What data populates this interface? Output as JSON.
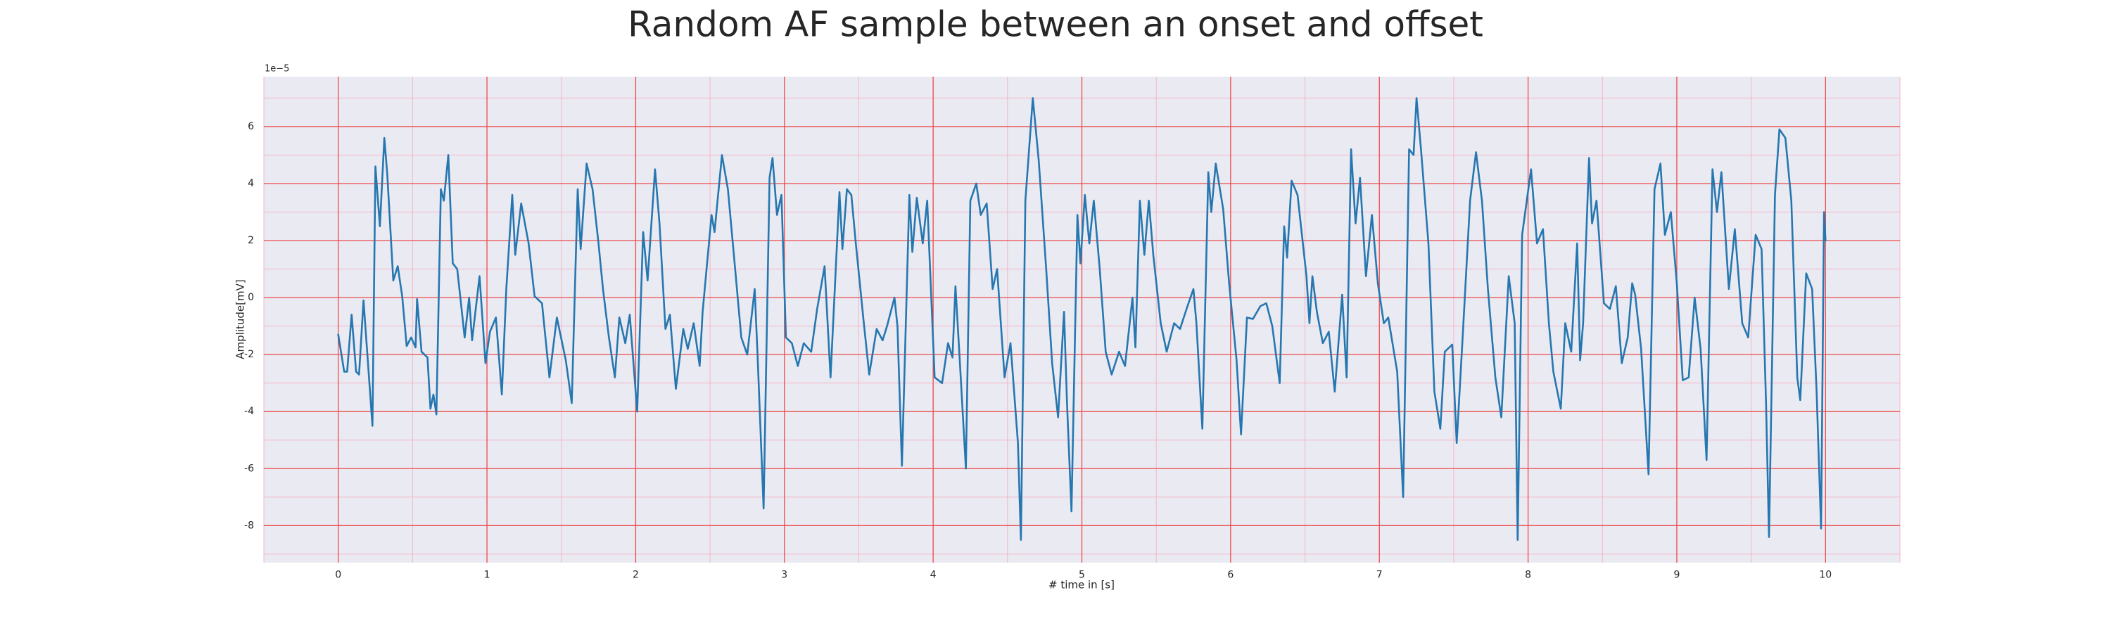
{
  "chart_data": {
    "type": "line",
    "title": "Random AF sample between an onset and offset",
    "xlabel": "# time in [s]",
    "ylabel": "Amplitude[mV]",
    "y_offset_label": "1e−5",
    "color": "#2677b0",
    "grid": true,
    "xlim": [
      -0.5,
      10.5
    ],
    "ylim": [
      -9.3,
      7.75
    ],
    "xticks": [
      0,
      1,
      2,
      3,
      4,
      5,
      6,
      7,
      8,
      9,
      10
    ],
    "yticks": [
      -8,
      -6,
      -4,
      -2,
      0,
      2,
      4,
      6
    ],
    "xminorticks": [
      -0.5,
      0.5,
      1.5,
      2.5,
      3.5,
      4.5,
      5.5,
      6.5,
      7.5,
      8.5,
      9.5,
      10.5
    ],
    "yminorticks": [
      -9,
      -7,
      -5,
      -3,
      -1,
      1,
      3,
      5,
      7
    ],
    "x": [
      0,
      0.04,
      0.06,
      0.09,
      0.12,
      0.14,
      0.17,
      0.2,
      0.23,
      0.25,
      0.28,
      0.31,
      0.33,
      0.37,
      0.4,
      0.43,
      0.46,
      0.49,
      0.52,
      0.53,
      0.56,
      0.6,
      0.62,
      0.64,
      0.66,
      0.69,
      0.71,
      0.74,
      0.77,
      0.8,
      0.82,
      0.85,
      0.88,
      0.9,
      0.95,
      0.99,
      1.02,
      1.06,
      1.1,
      1.13,
      1.17,
      1.19,
      1.23,
      1.28,
      1.32,
      1.37,
      1.42,
      1.47,
      1.53,
      1.57,
      1.61,
      1.63,
      1.67,
      1.71,
      1.75,
      1.78,
      1.82,
      1.86,
      1.89,
      1.93,
      1.96,
      2.01,
      2.05,
      2.08,
      2.13,
      2.16,
      2.2,
      2.23,
      2.27,
      2.32,
      2.35,
      2.39,
      2.43,
      2.45,
      2.51,
      2.53,
      2.58,
      2.62,
      2.66,
      2.71,
      2.75,
      2.8,
      2.82,
      2.86,
      2.9,
      2.92,
      2.95,
      2.98,
      3.01,
      3.05,
      3.09,
      3.13,
      3.18,
      3.22,
      3.27,
      3.31,
      3.37,
      3.39,
      3.42,
      3.45,
      3.48,
      3.53,
      3.57,
      3.62,
      3.66,
      3.69,
      3.74,
      3.76,
      3.79,
      3.84,
      3.86,
      3.89,
      3.93,
      3.96,
      4.01,
      4.06,
      4.1,
      4.13,
      4.15,
      4.18,
      4.22,
      4.25,
      4.29,
      4.32,
      4.36,
      4.4,
      4.43,
      4.48,
      4.52,
      4.57,
      4.59,
      4.62,
      4.67,
      4.71,
      4.76,
      4.8,
      4.84,
      4.88,
      4.9,
      4.93,
      4.97,
      4.99,
      5.02,
      5.05,
      5.08,
      5.12,
      5.16,
      5.2,
      5.25,
      5.29,
      5.34,
      5.36,
      5.39,
      5.42,
      5.45,
      5.48,
      5.53,
      5.57,
      5.62,
      5.66,
      5.71,
      5.75,
      5.77,
      5.81,
      5.85,
      5.87,
      5.9,
      5.95,
      5.99,
      6.04,
      6.07,
      6.11,
      6.15,
      6.2,
      6.24,
      6.28,
      6.33,
      6.36,
      6.38,
      6.41,
      6.45,
      6.51,
      6.53,
      6.55,
      6.58,
      6.62,
      6.66,
      6.7,
      6.75,
      6.78,
      6.81,
      6.84,
      6.87,
      6.91,
      6.95,
      6.99,
      7.03,
      7.06,
      7.12,
      7.16,
      7.2,
      7.23,
      7.25,
      7.28,
      7.33,
      7.37,
      7.41,
      7.44,
      7.49,
      7.52,
      7.56,
      7.61,
      7.65,
      7.69,
      7.73,
      7.78,
      7.82,
      7.87,
      7.91,
      7.93,
      7.96,
      8.02,
      8.06,
      8.1,
      8.14,
      8.17,
      8.22,
      8.25,
      8.29,
      8.33,
      8.35,
      8.37,
      8.41,
      8.43,
      8.46,
      8.51,
      8.55,
      8.59,
      8.63,
      8.67,
      8.7,
      8.72,
      8.76,
      8.81,
      8.85,
      8.89,
      8.92,
      8.96,
      9.0,
      9.04,
      9.08,
      9.12,
      9.16,
      9.2,
      9.24,
      9.27,
      9.3,
      9.35,
      9.39,
      9.44,
      9.48,
      9.53,
      9.57,
      9.6,
      9.62,
      9.66,
      9.69,
      9.73,
      9.77,
      9.81,
      9.83,
      9.87,
      9.91,
      9.94,
      9.97,
      9.99,
      10.0
    ],
    "values": [
      -1.3,
      -2.6,
      -2.6,
      -0.6,
      -2.6,
      -2.7,
      -0.1,
      -2.3,
      -4.5,
      4.6,
      2.5,
      5.6,
      4.3,
      0.6,
      1.1,
      0.05,
      -1.7,
      -1.4,
      -1.75,
      -0.05,
      -1.9,
      -2.1,
      -3.9,
      -3.4,
      -4.1,
      3.8,
      3.4,
      5.0,
      1.2,
      1.0,
      0.05,
      -1.4,
      0,
      -1.5,
      0.75,
      -2.3,
      -1.2,
      -0.7,
      -3.4,
      0.3,
      3.6,
      1.5,
      3.3,
      1.9,
      0.05,
      -0.2,
      -2.8,
      -0.7,
      -2.2,
      -3.7,
      3.8,
      1.7,
      4.7,
      3.8,
      1.9,
      0.3,
      -1.4,
      -2.8,
      -0.7,
      -1.6,
      -0.6,
      -4.0,
      2.3,
      0.6,
      4.5,
      2.6,
      -1.1,
      -0.6,
      -3.2,
      -1.1,
      -1.8,
      -0.9,
      -2.4,
      -0.5,
      2.9,
      2.3,
      5.0,
      3.8,
      1.5,
      -1.4,
      -2.0,
      0.3,
      -2.1,
      -7.4,
      4.2,
      4.9,
      2.9,
      3.6,
      -1.4,
      -1.6,
      -2.4,
      -1.6,
      -1.9,
      -0.4,
      1.1,
      -2.8,
      3.7,
      1.7,
      3.8,
      3.6,
      1.9,
      -0.7,
      -2.7,
      -1.1,
      -1.5,
      -1.0,
      0,
      -1.0,
      -5.9,
      3.6,
      1.6,
      3.5,
      1.9,
      3.4,
      -2.8,
      -3.0,
      -1.6,
      -2.1,
      0.4,
      -2.3,
      -6.0,
      3.4,
      4.0,
      2.9,
      3.3,
      0.3,
      1.0,
      -2.8,
      -1.6,
      -5.1,
      -8.5,
      3.4,
      7.0,
      4.8,
      1.0,
      -2.3,
      -4.2,
      -0.5,
      -3.7,
      -7.5,
      2.9,
      1.2,
      3.6,
      1.9,
      3.4,
      1.0,
      -1.9,
      -2.7,
      -1.9,
      -2.4,
      0,
      -1.75,
      3.4,
      1.5,
      3.4,
      1.5,
      -0.9,
      -1.9,
      -0.9,
      -1.1,
      -0.3,
      0.3,
      -0.9,
      -4.6,
      4.4,
      3.0,
      4.7,
      3.1,
      0.5,
      -2.2,
      -4.8,
      -0.7,
      -0.75,
      -0.3,
      -0.2,
      -1.0,
      -3.0,
      2.5,
      1.4,
      4.1,
      3.6,
      0.75,
      -0.9,
      0.75,
      -0.5,
      -1.6,
      -1.2,
      -3.3,
      0.1,
      -2.8,
      5.2,
      2.6,
      4.2,
      0.75,
      2.9,
      0.5,
      -0.9,
      -0.7,
      -2.6,
      -7.0,
      5.2,
      5.0,
      7.0,
      5.2,
      1.9,
      -3.3,
      -4.6,
      -1.9,
      -1.65,
      -5.1,
      -1.4,
      3.4,
      5.1,
      3.4,
      0.3,
      -2.8,
      -4.2,
      0.75,
      -0.9,
      -8.5,
      2.2,
      4.5,
      1.9,
      2.4,
      -0.9,
      -2.6,
      -3.9,
      -0.9,
      -1.9,
      1.9,
      -2.2,
      -0.9,
      4.9,
      2.6,
      3.4,
      -0.2,
      -0.4,
      0.4,
      -2.3,
      -1.4,
      0.5,
      0.1,
      -1.8,
      -6.2,
      3.8,
      4.7,
      2.2,
      3.0,
      0.5,
      -2.9,
      -2.8,
      0,
      -1.8,
      -5.7,
      4.5,
      3.0,
      4.4,
      0.3,
      2.4,
      -0.9,
      -1.4,
      2.2,
      1.7,
      -3.7,
      -8.4,
      3.6,
      5.9,
      5.6,
      3.4,
      -2.8,
      -3.6,
      0.85,
      0.3,
      -3.3,
      -8.1,
      3.0,
      2.0
    ]
  }
}
